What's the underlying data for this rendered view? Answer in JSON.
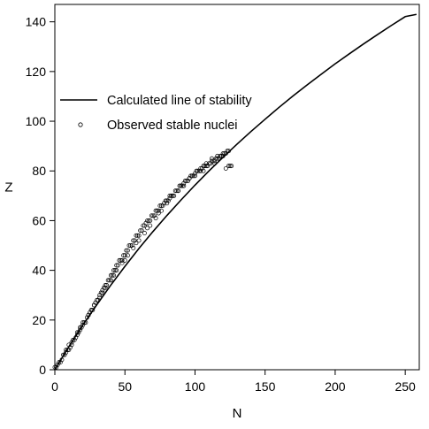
{
  "chart_data": {
    "type": "scatter",
    "xlabel": "N",
    "ylabel": "Z",
    "xlim": [
      0,
      260
    ],
    "ylim": [
      0,
      147
    ],
    "xticks": [
      0,
      50,
      100,
      150,
      200,
      250
    ],
    "yticks": [
      0,
      20,
      40,
      60,
      80,
      100,
      120,
      140
    ],
    "grid": false,
    "legend": {
      "placement": "top-left",
      "entries": [
        "Calculated line of stability",
        "Observed stable nuclei"
      ]
    },
    "series": [
      {
        "name": "Calculated line of stability",
        "kind": "line",
        "x": [
          0,
          10,
          20,
          30,
          40,
          50,
          60,
          70,
          80,
          90,
          100,
          110,
          120,
          130,
          140,
          150,
          160,
          170,
          180,
          190,
          200,
          210,
          220,
          230,
          240,
          250,
          258
        ],
        "y": [
          0,
          9.3,
          18.0,
          26.2,
          34.1,
          41.6,
          48.8,
          55.6,
          62.1,
          68.3,
          74.3,
          80.0,
          85.5,
          90.8,
          95.9,
          100.8,
          105.6,
          110.2,
          114.6,
          118.9,
          123.1,
          127.1,
          131.0,
          134.8,
          138.5,
          142.1,
          143.0
        ]
      },
      {
        "name": "Observed stable nuclei",
        "kind": "scatter",
        "x": [
          0,
          1,
          2,
          3,
          4,
          5,
          6,
          7,
          8,
          9,
          10,
          11,
          12,
          13,
          14,
          15,
          16,
          17,
          18,
          19,
          20,
          21,
          22,
          23,
          24,
          25,
          26,
          27,
          28,
          29,
          30,
          31,
          32,
          33,
          34,
          35,
          36,
          37,
          38,
          39,
          40,
          41,
          42,
          43,
          44,
          45,
          46,
          47,
          48,
          49,
          50,
          51,
          52,
          53,
          54,
          55,
          56,
          57,
          58,
          59,
          60,
          61,
          62,
          63,
          64,
          65,
          66,
          67,
          68,
          69,
          70,
          71,
          72,
          73,
          74,
          75,
          76,
          77,
          78,
          79,
          80,
          81,
          82,
          83,
          84,
          85,
          86,
          87,
          88,
          89,
          90,
          91,
          92,
          93,
          94,
          95,
          96,
          97,
          98,
          99,
          100,
          101,
          102,
          103,
          104,
          105,
          106,
          107,
          108,
          109,
          110,
          111,
          112,
          113,
          114,
          115,
          116,
          117,
          118,
          119,
          120,
          121,
          122,
          123,
          124,
          125,
          126,
          8,
          12,
          16,
          20,
          24,
          28,
          32,
          36,
          40,
          44,
          48,
          52,
          56,
          60,
          64,
          68,
          72,
          76,
          80,
          84,
          88,
          92,
          96,
          100,
          104,
          108,
          112,
          116,
          120,
          124,
          10,
          18,
          26,
          34,
          42,
          50,
          58,
          66,
          74,
          82,
          90,
          98,
          106,
          114,
          122
        ],
        "y": [
          1,
          1,
          2,
          3,
          3,
          4,
          6,
          6,
          7,
          8,
          8,
          9,
          10,
          12,
          12,
          13,
          14,
          15,
          16,
          17,
          18,
          19,
          19,
          21,
          22,
          23,
          24,
          24,
          26,
          27,
          28,
          28,
          30,
          31,
          32,
          33,
          34,
          34,
          36,
          36,
          38,
          38,
          40,
          40,
          42,
          42,
          44,
          44,
          44,
          46,
          46,
          48,
          48,
          50,
          50,
          50,
          52,
          52,
          54,
          54,
          54,
          56,
          56,
          58,
          58,
          59,
          60,
          60,
          60,
          62,
          62,
          62,
          64,
          64,
          64,
          66,
          66,
          66,
          67,
          68,
          68,
          68,
          70,
          70,
          70,
          70,
          72,
          72,
          72,
          74,
          74,
          74,
          74,
          76,
          76,
          76,
          77,
          78,
          78,
          78,
          78,
          80,
          80,
          80,
          80,
          81,
          82,
          82,
          82,
          82,
          83,
          83,
          84,
          84,
          84,
          85,
          85,
          85,
          86,
          86,
          86,
          87,
          87,
          88,
          88,
          82,
          82,
          8,
          11,
          15,
          19,
          22,
          26,
          29,
          33,
          36,
          40,
          43,
          46,
          49,
          52,
          55,
          58,
          61,
          64,
          67,
          70,
          72,
          75,
          77,
          79,
          81,
          83,
          85,
          86,
          87,
          82,
          10,
          17,
          24,
          31,
          38,
          44,
          51,
          57,
          63,
          69,
          74,
          78,
          80,
          83,
          81
        ]
      }
    ]
  }
}
